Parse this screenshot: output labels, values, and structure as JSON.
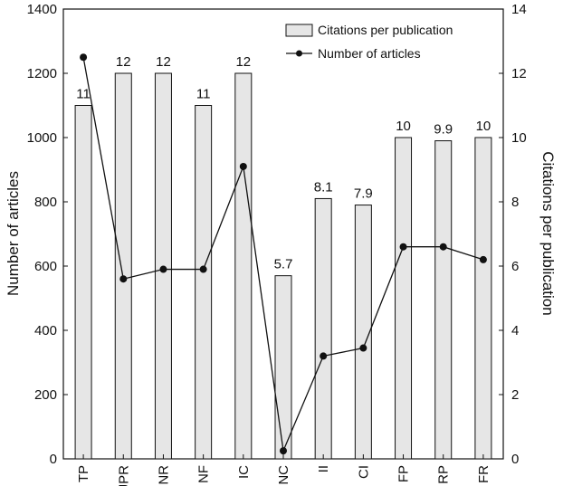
{
  "chart_data": {
    "type": "bar",
    "title": "",
    "categories": [
      "TP",
      "JPR",
      "NR",
      "NF",
      "IC",
      "NC",
      "II",
      "CI",
      "FP",
      "RP",
      "FR"
    ],
    "series": [
      {
        "name": "Citations per publication",
        "type": "bar",
        "axis": "right",
        "values": [
          11,
          12,
          12,
          11,
          12,
          5.7,
          8.1,
          7.9,
          10,
          9.9,
          10
        ],
        "labels": [
          "11",
          "12",
          "12",
          "11",
          "12",
          "5.7",
          "8.1",
          "7.9",
          "10",
          "9.9",
          "10"
        ]
      },
      {
        "name": "Number of articles",
        "type": "line",
        "axis": "left",
        "values": [
          1250,
          560,
          590,
          590,
          910,
          25,
          320,
          345,
          660,
          660,
          620
        ]
      }
    ],
    "y_left": {
      "label": "Number of articles",
      "lim": [
        0,
        1400
      ],
      "ticks": [
        "0",
        "200",
        "400",
        "600",
        "800",
        "1000",
        "1200",
        "1400"
      ]
    },
    "y_right": {
      "label": "Citations per publication",
      "lim": [
        0,
        14
      ],
      "ticks": [
        "0",
        "2",
        "4",
        "6",
        "8",
        "10",
        "12",
        "14"
      ]
    },
    "xlabel": "",
    "legend": {
      "position": "top-right"
    },
    "grid": false,
    "colors": {
      "bar_fill": "#e6e6e6",
      "bar_stroke": "#111111",
      "line": "#111111",
      "marker": "#111111"
    }
  }
}
